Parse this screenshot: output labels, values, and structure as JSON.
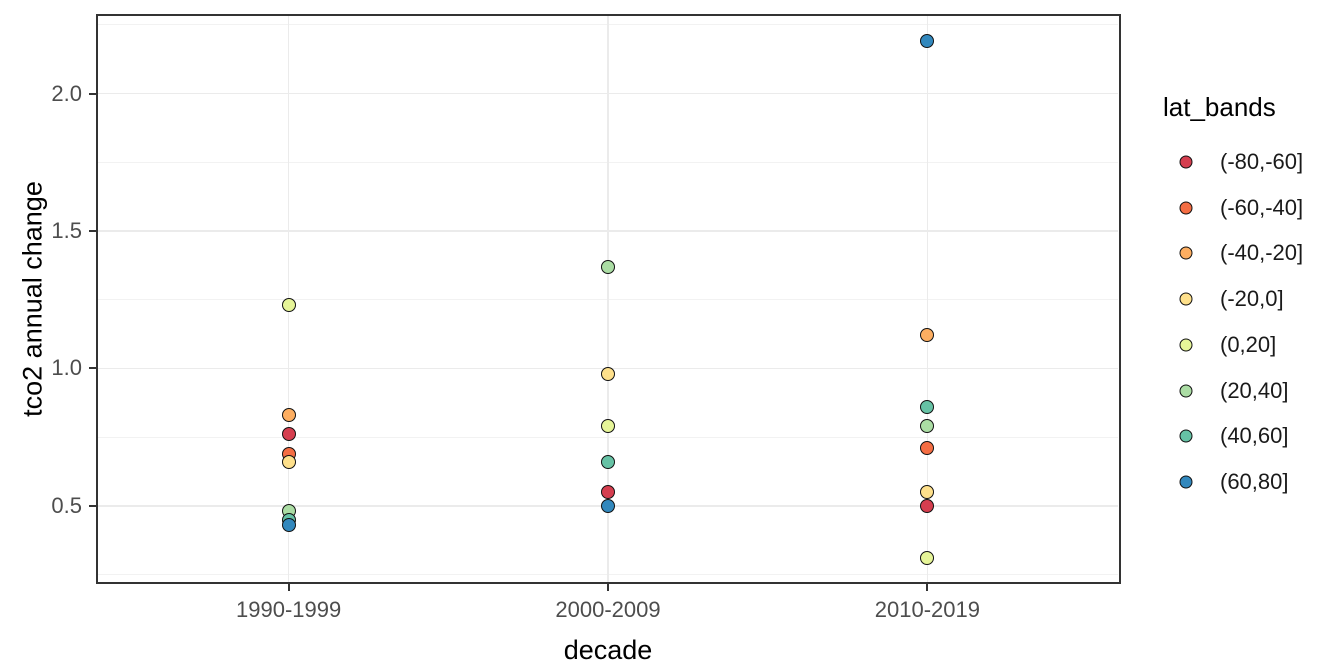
{
  "chart_data": {
    "type": "scatter",
    "title": "",
    "xlabel": "decade",
    "ylabel": "tco2 annual change",
    "x_categories": [
      "1990-1999",
      "2000-2009",
      "2010-2019"
    ],
    "y_ticks": [
      0.5,
      1.0,
      1.5,
      2.0
    ],
    "y_tick_labels": [
      "0.5",
      "1.0",
      "1.5",
      "2.0"
    ],
    "y_minor_ticks": [
      0.25,
      0.75,
      1.25,
      1.75,
      2.25
    ],
    "ylim": [
      0.22,
      2.29
    ],
    "grid": "major+minor",
    "panel_theme": "bw",
    "legend_position": "right",
    "legend_title": "lat_bands",
    "series": [
      {
        "name": "(-80,-60]",
        "color": "#d53e4f",
        "points": [
          [
            "1990-1999",
            0.76
          ],
          [
            "2000-2009",
            0.55
          ],
          [
            "2010-2019",
            0.5
          ]
        ]
      },
      {
        "name": "(-60,-40]",
        "color": "#f46d43",
        "points": [
          [
            "1990-1999",
            0.69
          ],
          [
            "2010-2019",
            0.71
          ]
        ]
      },
      {
        "name": "(-40,-20]",
        "color": "#fdae61",
        "points": [
          [
            "1990-1999",
            0.83
          ],
          [
            "2010-2019",
            1.12
          ]
        ]
      },
      {
        "name": "(-20,0]",
        "color": "#fee08b",
        "points": [
          [
            "1990-1999",
            0.66
          ],
          [
            "2000-2009",
            0.98
          ],
          [
            "2010-2019",
            0.55
          ]
        ]
      },
      {
        "name": "(0,20]",
        "color": "#e6f598",
        "points": [
          [
            "1990-1999",
            1.23
          ],
          [
            "2000-2009",
            0.79
          ],
          [
            "2010-2019",
            0.31
          ]
        ]
      },
      {
        "name": "(20,40]",
        "color": "#abdda4",
        "points": [
          [
            "1990-1999",
            0.48
          ],
          [
            "2000-2009",
            1.37
          ],
          [
            "2010-2019",
            0.79
          ]
        ]
      },
      {
        "name": "(40,60]",
        "color": "#66c2a5",
        "points": [
          [
            "1990-1999",
            0.45
          ],
          [
            "2000-2009",
            0.66
          ],
          [
            "2010-2019",
            0.86
          ]
        ]
      },
      {
        "name": "(60,80]",
        "color": "#3288bd",
        "points": [
          [
            "1990-1999",
            0.43
          ],
          [
            "2000-2009",
            0.5
          ],
          [
            "2010-2019",
            2.19
          ]
        ]
      }
    ]
  }
}
